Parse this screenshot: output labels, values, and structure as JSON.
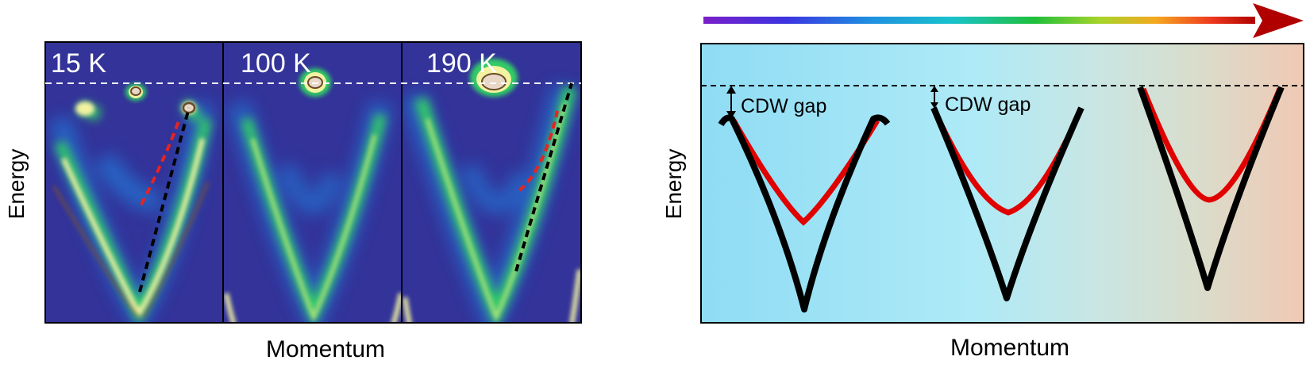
{
  "left_panel": {
    "ylabel": "Energy",
    "xlabel": "Momentum",
    "subpanels": [
      {
        "label": "15 K"
      },
      {
        "label": "100 K"
      },
      {
        "label": "190 K"
      }
    ]
  },
  "right_panel": {
    "ylabel": "Energy",
    "xlabel": "Momentum",
    "gap_labels": [
      "CDW gap",
      "CDW gap"
    ]
  },
  "colors": {
    "map_background": "#333399",
    "band_core": "#f2f2a0",
    "band_mid": "#33cc66",
    "band_halo": "#1e88e5",
    "hot_spot": "#e8d8c8",
    "dashed_red": "#e52421",
    "dashed_black": "#000000",
    "schematic_red": "#e00000",
    "schematic_black": "#000000",
    "arrow_head": "#b00000"
  }
}
